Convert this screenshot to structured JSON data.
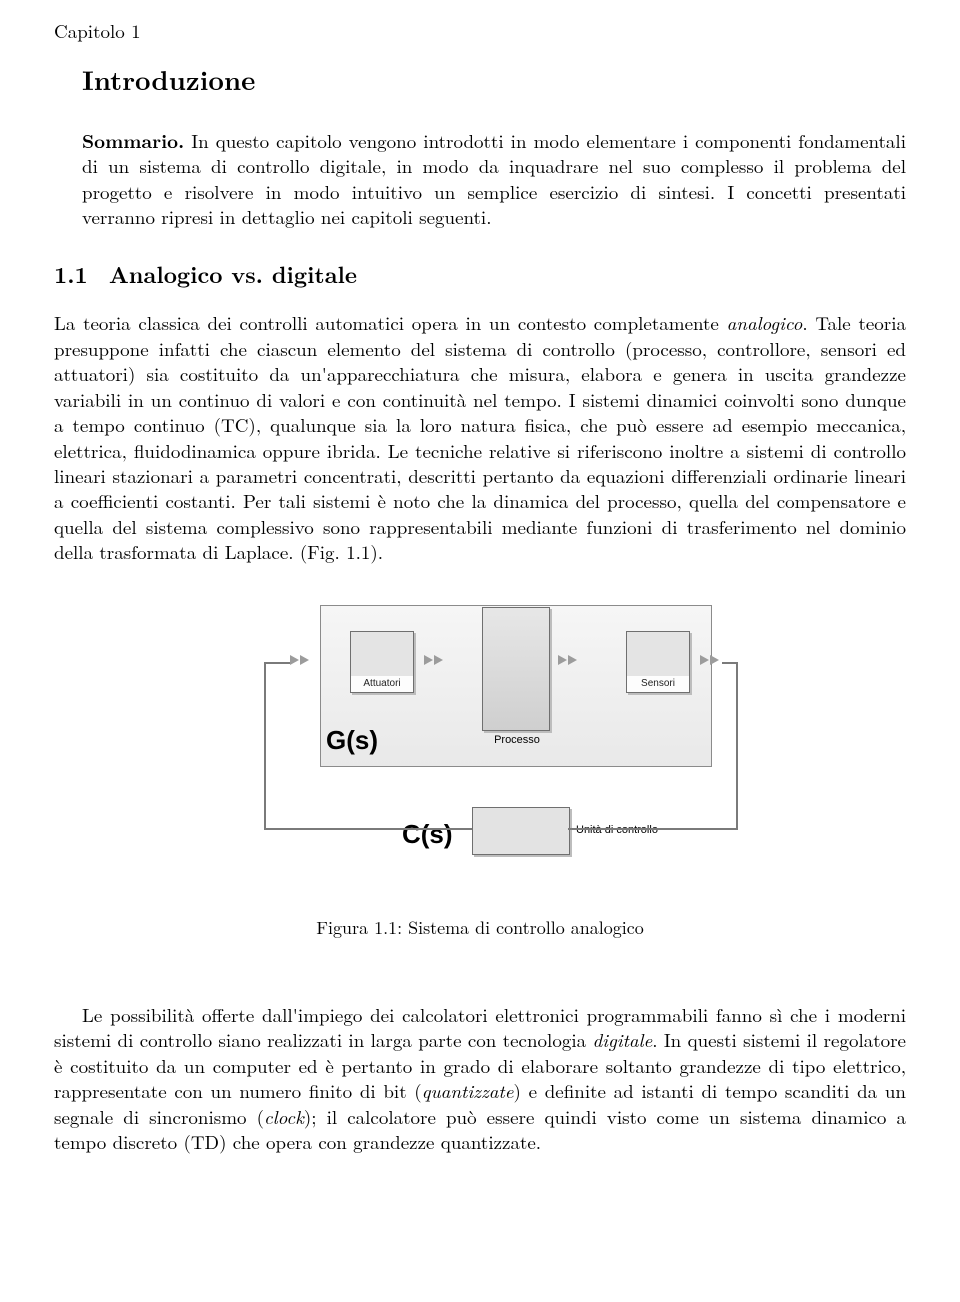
{
  "chapter": {
    "label": "Capitolo 1",
    "title": "Introduzione"
  },
  "summary": {
    "runin": "Sommario.",
    "text": " In questo capitolo vengono introdotti in modo elementare i componenti fondamentali di un sistema di controllo digitale, in modo da inquadrare nel suo complesso il problema del progetto e risolvere in modo intuitivo un semplice esercizio di sintesi. I concetti presentati verranno ripresi in dettaglio nei capitoli seguenti."
  },
  "section": {
    "number": "1.1",
    "title": "Analogico vs. digitale"
  },
  "para1": {
    "lead": "La teoria classica dei controlli automatici opera in un contesto completamente ",
    "em1": "analogico",
    "mid1": ". Tale teoria presuppone infatti che ciascun elemento del sistema di controllo (processo, controllore, sensori ed attuatori) sia costituito da un'apparecchiatura che misura, elabora e genera in uscita grandezze variabili in un continuo di valori e con continuità nel tempo. I sistemi dinamici coinvolti sono dunque a tempo continuo (TC), qualunque sia la loro natura fisica, che può essere ad esempio meccanica, elettrica, fluidodinamica oppure ibrida. Le tecniche relative si riferiscono inoltre a sistemi di controllo lineari stazionari a parametri concentrati, descritti pertanto da equazioni differenziali ordinarie lineari a coefficienti costanti. Per tali sistemi è noto che la dinamica del processo, quella del compensatore e quella del sistema complessivo sono rappresentabili mediante funzioni di trasferimento nel dominio della trasformata di Laplace. (Fig. 1.1)."
  },
  "figure": {
    "attuatori": "Attuatori",
    "sensori": "Sensori",
    "processo": "Processo",
    "controller": "Unità di controllo",
    "gs": "G(s)",
    "cs": "C(s)",
    "caption": "Figura 1.1: Sistema di controllo analogico"
  },
  "para2": {
    "lead": "Le possibilità offerte dall'impiego dei calcolatori elettronici programmabili fanno sì che i moderni sistemi di controllo siano realizzati in larga parte con tecnologia ",
    "em1": "digitale",
    "mid1": ". In questi sistemi il regolatore è costituito da un computer ed è pertanto in grado di elaborare soltanto grandezze di tipo elettrico, rappresentate con un numero finito di bit (",
    "em2": "quantizzate",
    "mid2": ") e definite ad istanti di tempo scanditi da un segnale di sincronismo (",
    "em3": "clock",
    "mid3": "); il calcolatore può essere quindi visto come un sistema dinamico a tempo discreto (TD) che opera con grandezze quantizzate."
  }
}
